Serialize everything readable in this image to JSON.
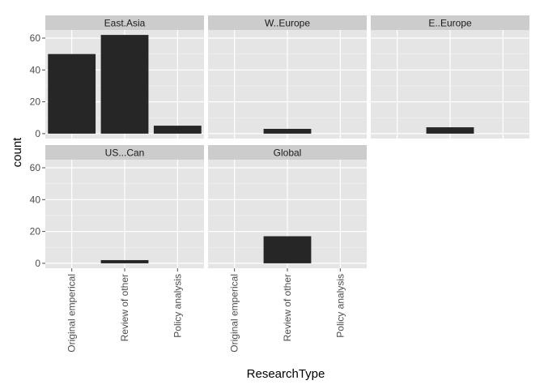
{
  "chart_data": {
    "type": "bar",
    "faceted": true,
    "xlabel": "ResearchType",
    "ylabel": "count",
    "ylim": [
      -3.1,
      65.1
    ],
    "yticks": [
      0,
      20,
      40,
      60
    ],
    "categories": [
      "Original emperical",
      "Review of other",
      "Policy analysis"
    ],
    "grid": true,
    "colors": {
      "panel_bg": "#e5e5e5",
      "strip_bg": "#cccccc",
      "gridline": "#ffffff",
      "bar": "#262626"
    },
    "facets": [
      {
        "label": "East.Asia",
        "values": [
          50,
          62,
          5
        ]
      },
      {
        "label": "W..Europe",
        "values": [
          0,
          3,
          0
        ]
      },
      {
        "label": "E..Europe",
        "values": [
          0,
          4,
          0
        ]
      },
      {
        "label": "US...Can",
        "values": [
          0,
          2,
          0
        ]
      },
      {
        "label": "Global",
        "values": [
          0,
          17,
          0
        ]
      }
    ]
  }
}
